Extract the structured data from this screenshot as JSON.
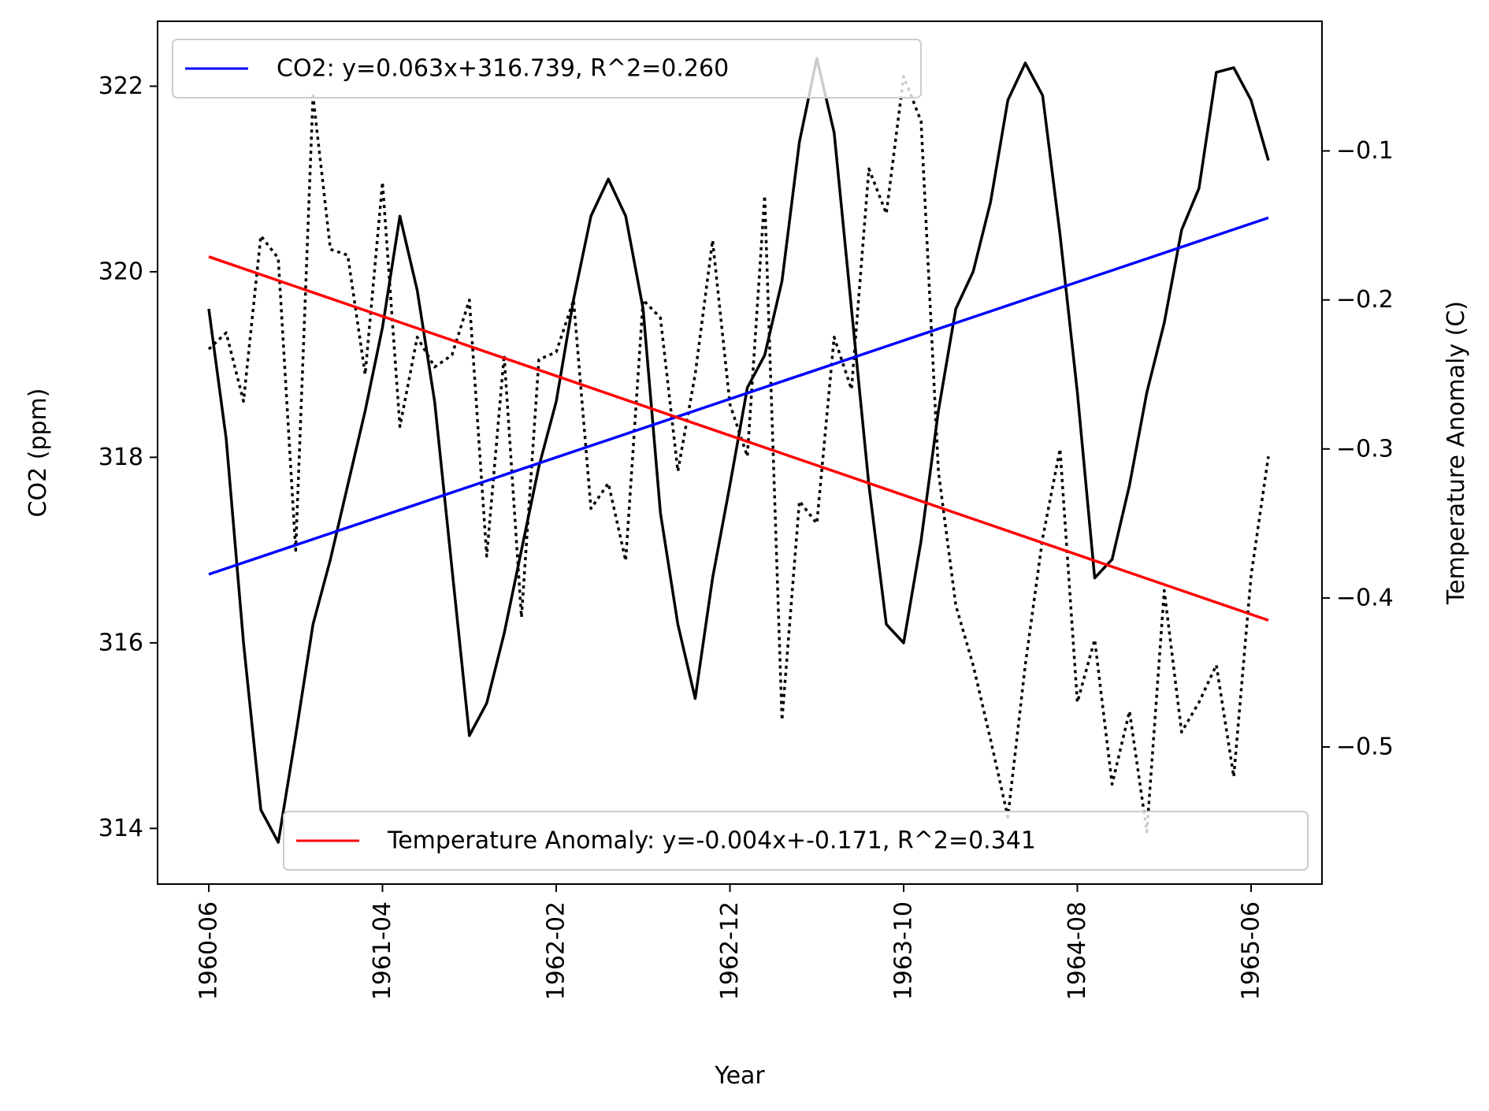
{
  "chart_data": {
    "type": "line",
    "xlabel": "Year",
    "ylabel_left": "CO2 (ppm)",
    "ylabel_right": "Temperature Anomaly (C)",
    "x_tick_labels": [
      "1960-06",
      "1961-04",
      "1962-02",
      "1962-12",
      "1963-10",
      "1964-08",
      "1965-06"
    ],
    "y_left_ticks": [
      "314",
      "316",
      "318",
      "320",
      "322"
    ],
    "y_right_ticks": [
      "−0.5",
      "−0.4",
      "−0.3",
      "−0.2",
      "−0.1"
    ],
    "y_left_range": [
      313.4,
      322.7
    ],
    "y_right_range": [
      -0.592,
      -0.013
    ],
    "x_months": [
      "1960-06",
      "1960-07",
      "1960-08",
      "1960-09",
      "1960-10",
      "1960-11",
      "1960-12",
      "1961-01",
      "1961-02",
      "1961-03",
      "1961-04",
      "1961-05",
      "1961-06",
      "1961-07",
      "1961-08",
      "1961-09",
      "1961-10",
      "1961-11",
      "1961-12",
      "1962-01",
      "1962-02",
      "1962-03",
      "1962-04",
      "1962-05",
      "1962-06",
      "1962-07",
      "1962-08",
      "1962-09",
      "1962-10",
      "1962-11",
      "1962-12",
      "1963-01",
      "1963-02",
      "1963-03",
      "1963-04",
      "1963-05",
      "1963-06",
      "1963-07",
      "1963-08",
      "1963-09",
      "1963-10",
      "1963-11",
      "1963-12",
      "1964-01",
      "1964-02",
      "1964-03",
      "1964-04",
      "1964-05",
      "1964-06",
      "1964-07",
      "1964-08",
      "1964-09",
      "1964-10",
      "1964-11",
      "1964-12",
      "1965-01",
      "1965-02",
      "1965-03",
      "1965-04",
      "1965-05",
      "1965-06",
      "1965-07"
    ],
    "series": [
      {
        "axis": "left",
        "style": "solid",
        "color": "#000000",
        "values": [
          319.6,
          318.2,
          316.0,
          314.2,
          313.85,
          315.0,
          316.2,
          316.9,
          317.7,
          318.5,
          319.4,
          320.6,
          319.8,
          318.6,
          316.8,
          315.0,
          315.35,
          316.1,
          317.0,
          317.9,
          318.6,
          319.7,
          320.6,
          321.0,
          320.6,
          319.6,
          317.4,
          316.2,
          315.4,
          316.7,
          317.7,
          318.75,
          319.1,
          319.9,
          321.4,
          322.3,
          321.5,
          319.6,
          317.7,
          316.2,
          316.0,
          317.1,
          318.5,
          319.6,
          320.0,
          320.75,
          321.85,
          322.25,
          321.9,
          320.4,
          318.7,
          316.7,
          316.9,
          317.7,
          318.7,
          319.45,
          320.45,
          320.9,
          322.15,
          322.2,
          321.85,
          321.2
        ]
      },
      {
        "axis": "right",
        "style": "dotted",
        "color": "#000000",
        "values": [
          -0.233,
          -0.222,
          -0.268,
          -0.157,
          -0.172,
          -0.368,
          -0.063,
          -0.166,
          -0.17,
          -0.25,
          -0.121,
          -0.285,
          -0.225,
          -0.245,
          -0.237,
          -0.2,
          -0.372,
          -0.237,
          -0.413,
          -0.24,
          -0.235,
          -0.2,
          -0.34,
          -0.323,
          -0.375,
          -0.2,
          -0.212,
          -0.315,
          -0.25,
          -0.16,
          -0.27,
          -0.305,
          -0.13,
          -0.482,
          -0.335,
          -0.35,
          -0.225,
          -0.26,
          -0.112,
          -0.142,
          -0.05,
          -0.08,
          -0.315,
          -0.405,
          -0.445,
          -0.495,
          -0.547,
          -0.445,
          -0.36,
          -0.3,
          -0.47,
          -0.428,
          -0.525,
          -0.476,
          -0.557,
          -0.395,
          -0.49,
          -0.47,
          -0.445,
          -0.52,
          -0.385,
          -0.305
        ]
      }
    ],
    "trendlines": [
      {
        "label": "CO2: y=0.063x+316.739, R^2=0.260",
        "axis": "left",
        "color": "#0000ff",
        "slope": 0.063,
        "intercept": 316.739
      },
      {
        "label": "Temperature Anomaly: y=-0.004x+-0.171, R^2=0.341",
        "axis": "right",
        "color": "#ff0000",
        "slope": -0.004,
        "intercept": -0.171
      }
    ],
    "legends": [
      "upper-left",
      "lower-right"
    ],
    "grid": false
  }
}
